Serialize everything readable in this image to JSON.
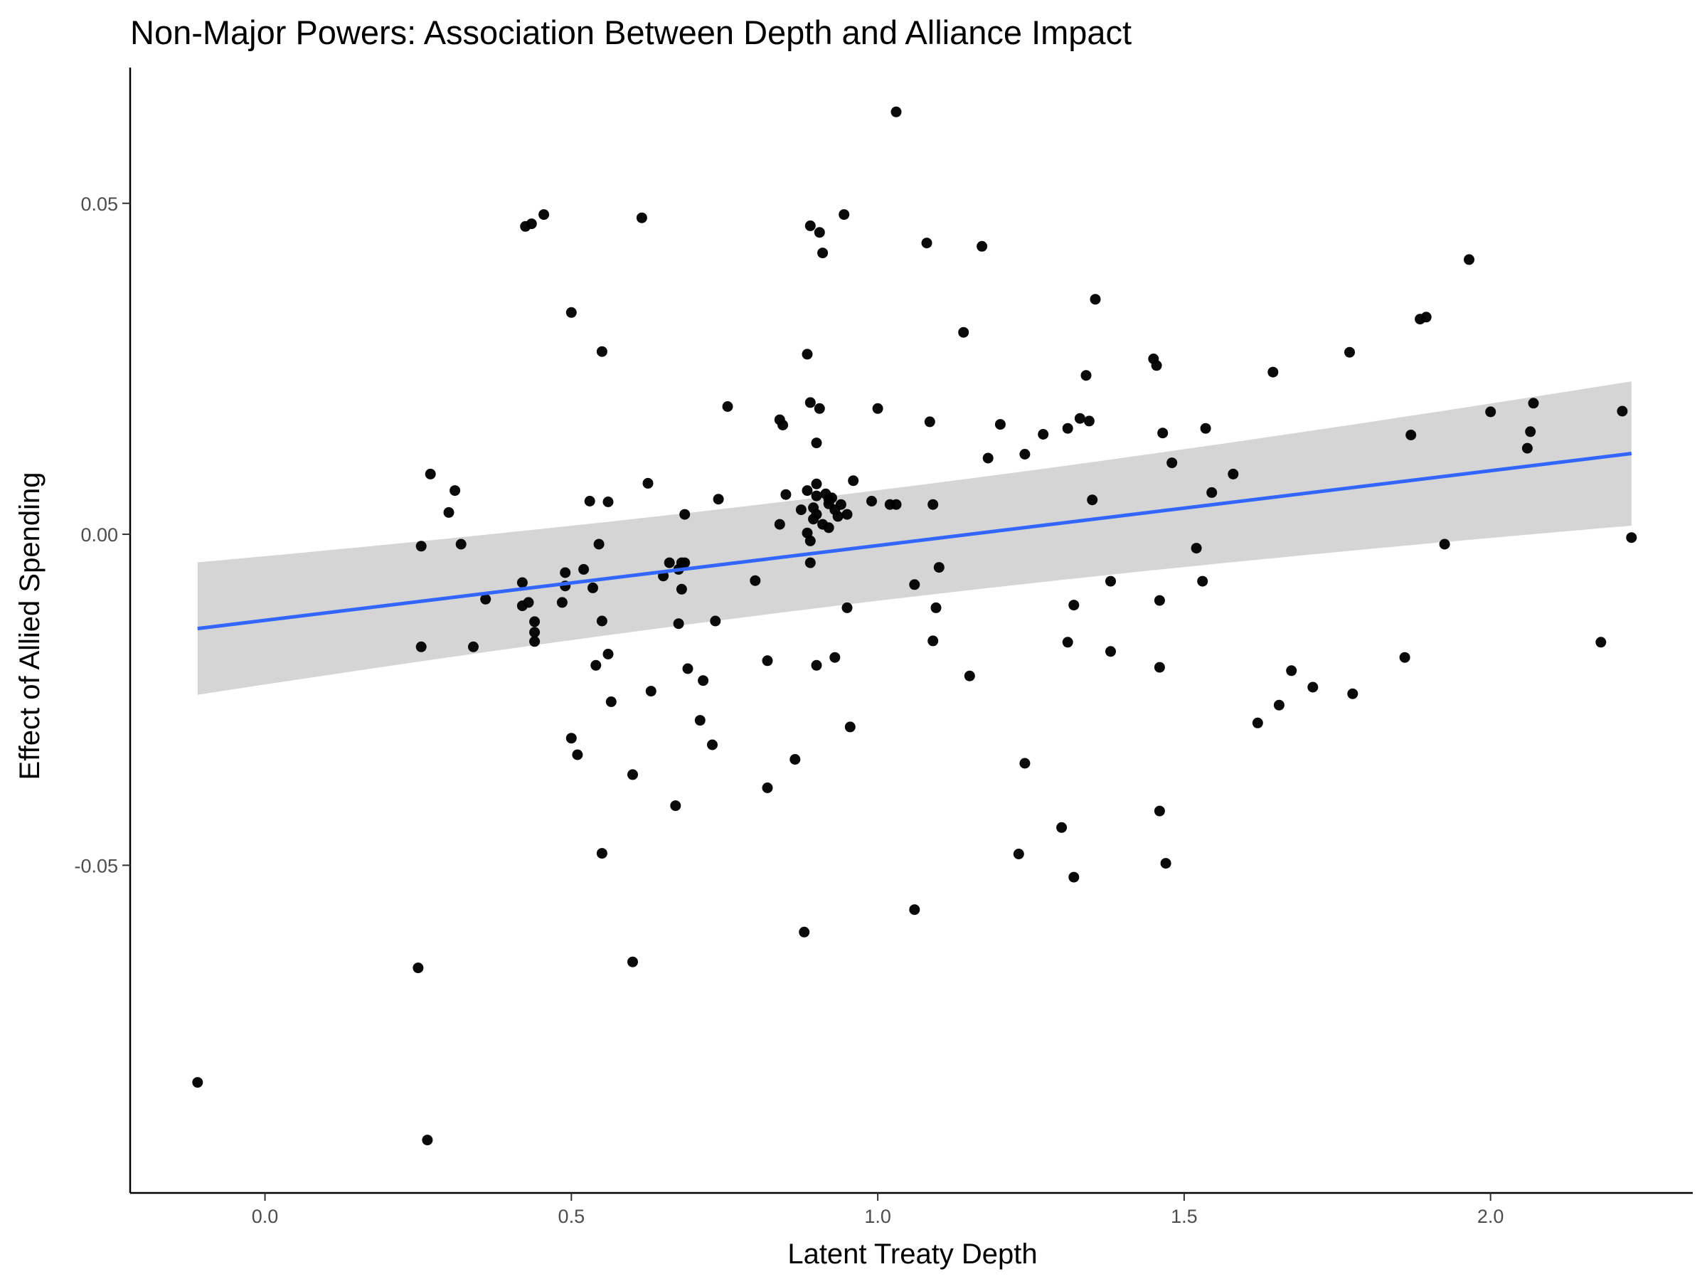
{
  "chart_data": {
    "type": "scatter",
    "title": "Non-Major Powers: Association Between Depth and Alliance Impact",
    "xlabel": "Latent Treaty Depth",
    "ylabel": "Effect of Allied Spending",
    "xlim": [
      -0.22,
      2.33
    ],
    "ylim": [
      -0.0995,
      0.0705
    ],
    "x_ticks": [
      0.0,
      0.5,
      1.0,
      1.5,
      2.0
    ],
    "x_tick_labels": [
      "0.0",
      "0.5",
      "1.0",
      "1.5",
      "2.0"
    ],
    "y_ticks": [
      -0.05,
      0.0,
      0.05
    ],
    "y_tick_labels": [
      "-0.05",
      "0.00",
      "0.05"
    ],
    "grid": false,
    "legend": "none",
    "colors": {
      "points": "#000000",
      "fit_line": "#3366FF",
      "ribbon": "#D3D3D3"
    },
    "fit": {
      "method": "linear",
      "x_range": [
        -0.11,
        2.23
      ],
      "intercept": -0.013,
      "slope": 0.0113,
      "ci_at_x_min": [
        -0.0245,
        -0.0045
      ],
      "ci_at_x_max": [
        0.0015,
        0.0233
      ],
      "ci_ref_x": 0.92
    },
    "points": [
      [
        -0.11,
        -0.0828
      ],
      [
        0.25,
        -0.0655
      ],
      [
        0.255,
        -0.0018
      ],
      [
        0.255,
        -0.017
      ],
      [
        0.265,
        -0.0915
      ],
      [
        0.27,
        0.0091
      ],
      [
        0.3,
        0.0033
      ],
      [
        0.31,
        0.0066
      ],
      [
        0.32,
        -0.0015
      ],
      [
        0.34,
        -0.017
      ],
      [
        0.36,
        -0.0098
      ],
      [
        0.425,
        0.0465
      ],
      [
        0.435,
        0.0469
      ],
      [
        0.455,
        0.0483
      ],
      [
        0.42,
        -0.0073
      ],
      [
        0.42,
        -0.0108
      ],
      [
        0.43,
        -0.0103
      ],
      [
        0.44,
        -0.0132
      ],
      [
        0.44,
        -0.0148
      ],
      [
        0.44,
        -0.0162
      ],
      [
        0.485,
        -0.0103
      ],
      [
        0.49,
        -0.0058
      ],
      [
        0.49,
        -0.0078
      ],
      [
        0.5,
        -0.0308
      ],
      [
        0.5,
        0.0335
      ],
      [
        0.51,
        -0.0333
      ],
      [
        0.52,
        -0.0053
      ],
      [
        0.53,
        0.005
      ],
      [
        0.535,
        -0.0081
      ],
      [
        0.54,
        -0.0198
      ],
      [
        0.545,
        -0.0015
      ],
      [
        0.55,
        -0.0131
      ],
      [
        0.55,
        0.0276
      ],
      [
        0.55,
        -0.0482
      ],
      [
        0.56,
        0.0049
      ],
      [
        0.56,
        -0.0181
      ],
      [
        0.565,
        -0.0253
      ],
      [
        0.6,
        -0.0363
      ],
      [
        0.6,
        -0.0646
      ],
      [
        0.615,
        0.0478
      ],
      [
        0.625,
        0.0077
      ],
      [
        0.63,
        -0.0237
      ],
      [
        0.65,
        -0.0063
      ],
      [
        0.66,
        -0.0043
      ],
      [
        0.67,
        -0.041
      ],
      [
        0.675,
        -0.0135
      ],
      [
        0.675,
        -0.0053
      ],
      [
        0.68,
        -0.0083
      ],
      [
        0.68,
        -0.0043
      ],
      [
        0.685,
        0.003
      ],
      [
        0.685,
        -0.0043
      ],
      [
        0.69,
        -0.0203
      ],
      [
        0.71,
        -0.0281
      ],
      [
        0.715,
        -0.0221
      ],
      [
        0.73,
        -0.0318
      ],
      [
        0.735,
        -0.0131
      ],
      [
        0.74,
        0.0053
      ],
      [
        0.755,
        0.0193
      ],
      [
        0.8,
        -0.007
      ],
      [
        0.82,
        -0.0191
      ],
      [
        0.82,
        -0.0383
      ],
      [
        0.84,
        0.0015
      ],
      [
        0.84,
        0.0173
      ],
      [
        0.845,
        0.0165
      ],
      [
        0.85,
        0.006
      ],
      [
        0.865,
        -0.034
      ],
      [
        0.875,
        0.0037
      ],
      [
        0.88,
        -0.0601
      ],
      [
        0.885,
        0.0272
      ],
      [
        0.885,
        0.0066
      ],
      [
        0.885,
        0.0002
      ],
      [
        0.89,
        0.0199
      ],
      [
        0.89,
        0.0466
      ],
      [
        0.89,
        -0.001
      ],
      [
        0.89,
        -0.0043
      ],
      [
        0.895,
        0.004
      ],
      [
        0.895,
        0.0023
      ],
      [
        0.9,
        0.0138
      ],
      [
        0.9,
        0.0076
      ],
      [
        0.9,
        0.0058
      ],
      [
        0.9,
        0.003
      ],
      [
        0.905,
        0.0456
      ],
      [
        0.905,
        0.019
      ],
      [
        0.91,
        0.0015
      ],
      [
        0.91,
        0.0425
      ],
      [
        0.915,
        0.0061
      ],
      [
        0.92,
        0.0053
      ],
      [
        0.92,
        0.0046
      ],
      [
        0.92,
        0.001
      ],
      [
        0.925,
        0.0055
      ],
      [
        0.93,
        0.0037
      ],
      [
        0.935,
        0.0027
      ],
      [
        0.94,
        0.0045
      ],
      [
        0.945,
        0.0483
      ],
      [
        0.95,
        -0.0111
      ],
      [
        0.95,
        0.003
      ],
      [
        0.955,
        -0.0291
      ],
      [
        0.96,
        0.0081
      ],
      [
        0.9,
        -0.0198
      ],
      [
        0.93,
        -0.0186
      ],
      [
        0.99,
        0.005
      ],
      [
        1.0,
        0.019
      ],
      [
        1.02,
        0.0045
      ],
      [
        1.03,
        0.0045
      ],
      [
        1.03,
        0.0638
      ],
      [
        1.06,
        -0.0076
      ],
      [
        1.06,
        -0.0567
      ],
      [
        1.08,
        0.044
      ],
      [
        1.085,
        0.017
      ],
      [
        1.09,
        0.0045
      ],
      [
        1.09,
        -0.0161
      ],
      [
        1.095,
        -0.0111
      ],
      [
        1.1,
        -0.005
      ],
      [
        1.14,
        0.0305
      ],
      [
        1.15,
        -0.0214
      ],
      [
        1.17,
        0.0435
      ],
      [
        1.18,
        0.0115
      ],
      [
        1.2,
        0.0166
      ],
      [
        1.23,
        -0.0483
      ],
      [
        1.24,
        0.0121
      ],
      [
        1.24,
        -0.0346
      ],
      [
        1.27,
        0.0151
      ],
      [
        1.3,
        -0.0443
      ],
      [
        1.31,
        -0.0163
      ],
      [
        1.32,
        -0.0107
      ],
      [
        1.32,
        -0.0518
      ],
      [
        1.31,
        0.016
      ],
      [
        1.33,
        0.0175
      ],
      [
        1.34,
        0.024
      ],
      [
        1.345,
        0.0171
      ],
      [
        1.35,
        0.0052
      ],
      [
        1.355,
        0.0355
      ],
      [
        1.38,
        -0.0071
      ],
      [
        1.38,
        -0.0177
      ],
      [
        1.45,
        0.0265
      ],
      [
        1.455,
        0.0255
      ],
      [
        1.46,
        -0.01
      ],
      [
        1.46,
        -0.0201
      ],
      [
        1.46,
        -0.0418
      ],
      [
        1.465,
        0.0153
      ],
      [
        1.47,
        -0.0497
      ],
      [
        1.48,
        0.0108
      ],
      [
        1.52,
        -0.0021
      ],
      [
        1.53,
        -0.0071
      ],
      [
        1.535,
        0.016
      ],
      [
        1.545,
        0.0063
      ],
      [
        1.58,
        0.0091
      ],
      [
        1.62,
        -0.0285
      ],
      [
        1.645,
        0.0245
      ],
      [
        1.655,
        -0.0258
      ],
      [
        1.675,
        -0.0206
      ],
      [
        1.71,
        -0.0231
      ],
      [
        1.77,
        0.0275
      ],
      [
        1.775,
        -0.0241
      ],
      [
        1.86,
        -0.0186
      ],
      [
        1.87,
        0.015
      ],
      [
        1.885,
        0.0325
      ],
      [
        1.895,
        0.0328
      ],
      [
        1.925,
        -0.0015
      ],
      [
        1.965,
        0.0415
      ],
      [
        2.0,
        0.0185
      ],
      [
        2.06,
        0.013
      ],
      [
        2.065,
        0.0155
      ],
      [
        2.07,
        0.0198
      ],
      [
        2.18,
        -0.0163
      ],
      [
        2.215,
        0.0186
      ],
      [
        2.23,
        -0.0005
      ]
    ]
  }
}
